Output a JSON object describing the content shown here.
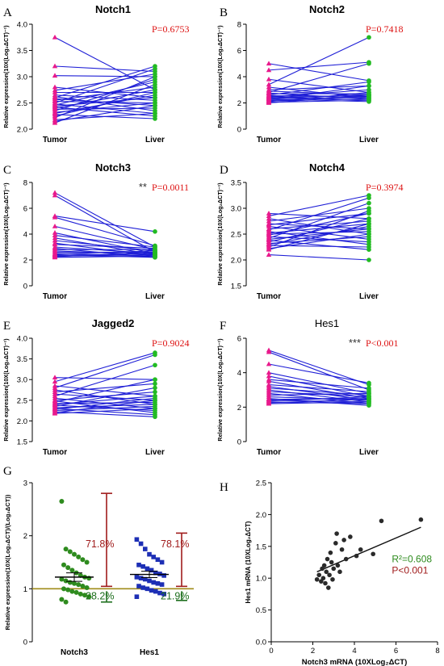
{
  "colors": {
    "tumor": "#e8198c",
    "liver": "#22bb22",
    "line": "#1f1fd6",
    "pvalue": "#dd1111",
    "sig": "#333333",
    "notch3_dots": "#2e8b1e",
    "hes1_dots": "#1d2fb5",
    "pct_red": "#a01c1c",
    "pct_green": "#1d6e1d",
    "baseline": "#a08c1a",
    "regression": "#111111",
    "r2": "#2e8b1e"
  },
  "chart_data": [
    {
      "id": "A",
      "type": "line",
      "panel_letter": "A",
      "title": "Notch1",
      "title_bold": true,
      "ylabel": "Relative expression(10X(Log₂ΔCT)⁻¹)",
      "categories": [
        "Tumor",
        "Liver"
      ],
      "ylim": [
        2.0,
        4.0
      ],
      "yticks": [
        "2.0",
        "2.5",
        "3.0",
        "3.5",
        "4.0"
      ],
      "pvalue": "P=0.6753",
      "sig": "",
      "pairs": [
        [
          3.75,
          2.75
        ],
        [
          3.2,
          3.1
        ],
        [
          3.02,
          3.0
        ],
        [
          2.8,
          2.6
        ],
        [
          2.74,
          3.05
        ],
        [
          2.7,
          2.7
        ],
        [
          2.65,
          2.55
        ],
        [
          2.62,
          2.35
        ],
        [
          2.6,
          3.2
        ],
        [
          2.58,
          2.45
        ],
        [
          2.55,
          2.8
        ],
        [
          2.53,
          2.5
        ],
        [
          2.5,
          3.15
        ],
        [
          2.48,
          2.3
        ],
        [
          2.46,
          2.9
        ],
        [
          2.44,
          2.6
        ],
        [
          2.42,
          2.25
        ],
        [
          2.4,
          2.75
        ],
        [
          2.38,
          2.4
        ],
        [
          2.35,
          2.95
        ],
        [
          2.32,
          2.5
        ],
        [
          2.3,
          2.65
        ],
        [
          2.28,
          2.2
        ],
        [
          2.25,
          2.7
        ],
        [
          2.22,
          3.0
        ],
        [
          2.18,
          2.3
        ],
        [
          2.15,
          2.45
        ],
        [
          2.12,
          2.85
        ]
      ]
    },
    {
      "id": "B",
      "type": "line",
      "panel_letter": "B",
      "title": "Notch2",
      "title_bold": true,
      "ylabel": "Relative expression(10X(Log₂ΔCT)⁻¹)",
      "categories": [
        "Tumor",
        "Liver"
      ],
      "ylim": [
        0,
        8
      ],
      "yticks": [
        "0",
        "2",
        "4",
        "6",
        "8"
      ],
      "pvalue": "P=0.7418",
      "sig": "",
      "pairs": [
        [
          5.0,
          3.7
        ],
        [
          4.5,
          5.1
        ],
        [
          3.8,
          2.8
        ],
        [
          3.4,
          7.0
        ],
        [
          3.2,
          2.4
        ],
        [
          3.0,
          3.3
        ],
        [
          2.9,
          2.6
        ],
        [
          2.8,
          5.0
        ],
        [
          2.75,
          2.3
        ],
        [
          2.7,
          2.7
        ],
        [
          2.6,
          3.6
        ],
        [
          2.55,
          2.5
        ],
        [
          2.5,
          2.2
        ],
        [
          2.45,
          3.0
        ],
        [
          2.4,
          2.6
        ],
        [
          2.35,
          2.4
        ],
        [
          2.3,
          2.1
        ],
        [
          2.25,
          3.3
        ],
        [
          2.2,
          2.5
        ],
        [
          2.15,
          2.3
        ],
        [
          2.1,
          2.8
        ],
        [
          2.05,
          2.2
        ],
        [
          2.0,
          2.6
        ]
      ]
    },
    {
      "id": "C",
      "type": "line",
      "panel_letter": "C",
      "title": "Notch3",
      "title_bold": true,
      "ylabel": "Relative expression(10X(Log₂ΔCT)⁻¹)",
      "categories": [
        "Tumor",
        "Liver"
      ],
      "ylim": [
        0,
        8
      ],
      "yticks": [
        "0",
        "2",
        "4",
        "6",
        "8"
      ],
      "pvalue": "P=0.0011",
      "sig": "**",
      "pairs": [
        [
          7.2,
          3.0
        ],
        [
          7.0,
          2.6
        ],
        [
          5.4,
          4.2
        ],
        [
          5.3,
          3.1
        ],
        [
          4.6,
          2.8
        ],
        [
          4.1,
          2.5
        ],
        [
          3.9,
          3.0
        ],
        [
          3.7,
          2.4
        ],
        [
          3.5,
          2.7
        ],
        [
          3.3,
          2.3
        ],
        [
          3.2,
          2.9
        ],
        [
          3.0,
          2.5
        ],
        [
          2.9,
          2.2
        ],
        [
          2.8,
          2.8
        ],
        [
          2.7,
          2.4
        ],
        [
          2.6,
          2.6
        ],
        [
          2.5,
          2.3
        ],
        [
          2.45,
          2.7
        ],
        [
          2.4,
          2.2
        ],
        [
          2.35,
          2.5
        ],
        [
          2.3,
          2.4
        ],
        [
          2.25,
          2.6
        ],
        [
          2.2,
          2.3
        ]
      ]
    },
    {
      "id": "D",
      "type": "line",
      "panel_letter": "D",
      "title": "Notch4",
      "title_bold": true,
      "ylabel": "Relative expression(10X(Log₂ΔCT)⁻¹)",
      "categories": [
        "Tumor",
        "Liver"
      ],
      "ylim": [
        1.5,
        3.5
      ],
      "yticks": [
        "1.5",
        "2.0",
        "2.5",
        "3.0",
        "3.5"
      ],
      "pvalue": "P=0.3974",
      "sig": "",
      "pairs": [
        [
          2.9,
          2.8
        ],
        [
          2.85,
          3.25
        ],
        [
          2.8,
          2.5
        ],
        [
          2.75,
          3.0
        ],
        [
          2.7,
          2.6
        ],
        [
          2.68,
          2.9
        ],
        [
          2.65,
          2.4
        ],
        [
          2.6,
          2.75
        ],
        [
          2.58,
          3.2
        ],
        [
          2.55,
          2.3
        ],
        [
          2.52,
          2.7
        ],
        [
          2.5,
          2.55
        ],
        [
          2.48,
          2.9
        ],
        [
          2.45,
          2.35
        ],
        [
          2.42,
          3.1
        ],
        [
          2.4,
          2.6
        ],
        [
          2.38,
          2.2
        ],
        [
          2.35,
          2.8
        ],
        [
          2.32,
          2.45
        ],
        [
          2.3,
          2.65
        ],
        [
          2.28,
          2.25
        ],
        [
          2.25,
          2.95
        ],
        [
          2.22,
          2.5
        ],
        [
          2.2,
          2.7
        ],
        [
          2.1,
          2.0
        ]
      ]
    },
    {
      "id": "E",
      "type": "line",
      "panel_letter": "E",
      "title": "Jagged2",
      "title_bold": true,
      "ylabel": "Relative expression(10X(Log₂ΔCT)⁻¹)",
      "categories": [
        "Tumor",
        "Liver"
      ],
      "ylim": [
        1.5,
        4.0
      ],
      "yticks": [
        "1.5",
        "2.0",
        "2.5",
        "3.0",
        "3.5",
        "4.0"
      ],
      "pvalue": "P=0.9024",
      "sig": "",
      "pairs": [
        [
          3.05,
          3.0
        ],
        [
          2.95,
          3.65
        ],
        [
          2.85,
          2.6
        ],
        [
          2.8,
          3.6
        ],
        [
          2.75,
          2.4
        ],
        [
          2.7,
          2.9
        ],
        [
          2.65,
          2.5
        ],
        [
          2.6,
          3.35
        ],
        [
          2.55,
          2.3
        ],
        [
          2.5,
          2.7
        ],
        [
          2.48,
          2.2
        ],
        [
          2.45,
          3.0
        ],
        [
          2.42,
          2.45
        ],
        [
          2.4,
          2.6
        ],
        [
          2.38,
          2.25
        ],
        [
          2.35,
          2.8
        ],
        [
          2.32,
          2.4
        ],
        [
          2.3,
          2.15
        ],
        [
          2.28,
          2.55
        ],
        [
          2.25,
          2.35
        ],
        [
          2.22,
          2.1
        ],
        [
          2.2,
          2.5
        ],
        [
          2.18,
          2.3
        ]
      ]
    },
    {
      "id": "F",
      "type": "line",
      "panel_letter": "F",
      "title": "Hes1",
      "title_bold": false,
      "ylabel": "Relative expression(10X(Log₂ΔCT)⁻¹)",
      "categories": [
        "Tumor",
        "Liver"
      ],
      "ylim": [
        0,
        6
      ],
      "yticks": [
        "0",
        "2",
        "4",
        "6"
      ],
      "pvalue": "P<0.001",
      "sig": "***",
      "pairs": [
        [
          5.3,
          3.3
        ],
        [
          5.2,
          3.0
        ],
        [
          4.5,
          3.4
        ],
        [
          4.0,
          2.8
        ],
        [
          3.8,
          2.6
        ],
        [
          3.6,
          3.1
        ],
        [
          3.5,
          2.5
        ],
        [
          3.3,
          2.9
        ],
        [
          3.2,
          2.4
        ],
        [
          3.1,
          2.7
        ],
        [
          3.0,
          2.3
        ],
        [
          2.9,
          2.6
        ],
        [
          2.8,
          2.2
        ],
        [
          2.7,
          2.8
        ],
        [
          2.6,
          2.4
        ],
        [
          2.5,
          2.1
        ],
        [
          2.45,
          2.5
        ],
        [
          2.4,
          2.3
        ],
        [
          2.35,
          2.6
        ],
        [
          2.3,
          2.2
        ],
        [
          2.25,
          2.45
        ],
        [
          2.2,
          2.3
        ]
      ]
    },
    {
      "id": "G",
      "type": "scatter",
      "panel_letter": "G",
      "ylabel": "Relative expression(10X(Log₂ΔCT)/(Log₂ΔCT))",
      "categories": [
        "Notch3",
        "Hes1"
      ],
      "ylim": [
        0,
        3
      ],
      "yticks": [
        "0",
        "1",
        "2",
        "3"
      ],
      "baseline": 1,
      "groups": [
        {
          "name": "Notch3",
          "mean": 1.22,
          "sem": 0.08,
          "values": [
            2.65,
            1.75,
            1.7,
            1.65,
            1.6,
            1.55,
            1.5,
            1.45,
            1.4,
            1.35,
            1.3,
            1.25,
            1.22,
            1.2,
            1.18,
            1.15,
            1.12,
            1.1,
            1.08,
            1.05,
            1.02,
            1.0,
            0.98,
            0.95,
            0.93,
            0.9,
            0.88,
            0.85,
            0.8,
            0.75
          ],
          "pct_above": "71.8%",
          "pct_below": "28.2%",
          "whisker_high": 2.8,
          "whisker_low": 0.75
        },
        {
          "name": "Hes1",
          "mean": 1.27,
          "sem": 0.06,
          "values": [
            1.93,
            1.85,
            1.75,
            1.65,
            1.6,
            1.55,
            1.5,
            1.45,
            1.42,
            1.38,
            1.35,
            1.3,
            1.28,
            1.25,
            1.22,
            1.2,
            1.18,
            1.15,
            1.12,
            1.1,
            1.08,
            1.05,
            1.02,
            1.0,
            0.97,
            0.95,
            0.92,
            0.9,
            0.85
          ],
          "pct_above": "78.1%",
          "pct_below": "21.9%",
          "whisker_high": 2.05,
          "whisker_low": 0.78
        }
      ]
    },
    {
      "id": "H",
      "type": "scatter",
      "panel_letter": "H",
      "xlabel": "Notch3 mRNA (10XLog₂ΔCT)",
      "ylabel": "Hes1 mRNA (10XLog₂ΔCT)",
      "xlim": [
        0,
        8
      ],
      "ylim": [
        0.0,
        2.5
      ],
      "xticks": [
        "0",
        "2",
        "4",
        "6",
        "8"
      ],
      "yticks": [
        "0.0",
        "0.5",
        "1.0",
        "1.5",
        "2.0",
        "2.5"
      ],
      "r2": "R²=0.608",
      "pvalue": "P<0.001",
      "regression": {
        "x": [
          2.2,
          7.2
        ],
        "y": [
          1.1,
          1.8
        ]
      },
      "points": [
        [
          2.2,
          0.98
        ],
        [
          2.3,
          1.05
        ],
        [
          2.4,
          0.95
        ],
        [
          2.45,
          1.15
        ],
        [
          2.5,
          1.0
        ],
        [
          2.55,
          1.2
        ],
        [
          2.6,
          0.92
        ],
        [
          2.65,
          1.1
        ],
        [
          2.7,
          1.3
        ],
        [
          2.75,
          0.85
        ],
        [
          2.8,
          1.05
        ],
        [
          2.85,
          1.4
        ],
        [
          2.9,
          1.25
        ],
        [
          2.95,
          0.98
        ],
        [
          3.0,
          1.15
        ],
        [
          3.1,
          1.55
        ],
        [
          3.15,
          1.7
        ],
        [
          3.2,
          1.2
        ],
        [
          3.3,
          1.1
        ],
        [
          3.4,
          1.45
        ],
        [
          3.5,
          1.6
        ],
        [
          3.6,
          1.3
        ],
        [
          3.8,
          1.65
        ],
        [
          4.1,
          1.35
        ],
        [
          4.3,
          1.45
        ],
        [
          4.9,
          1.38
        ],
        [
          5.3,
          1.9
        ],
        [
          7.2,
          1.92
        ]
      ]
    }
  ]
}
